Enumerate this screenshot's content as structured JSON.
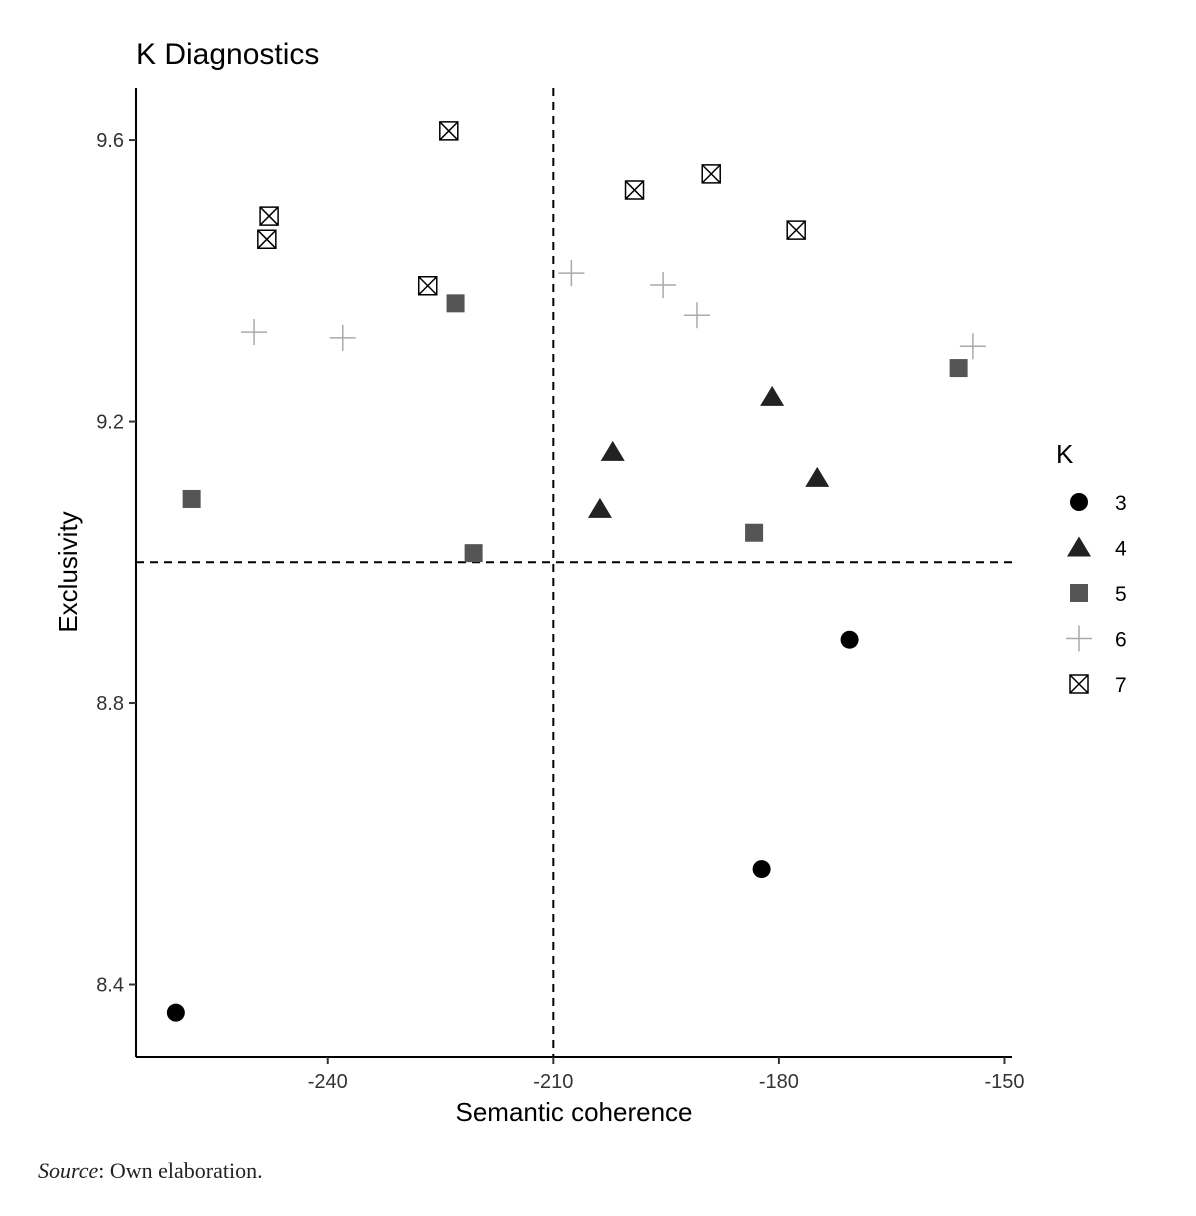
{
  "chart_data": {
    "type": "scatter",
    "title": "K Diagnostics",
    "xlabel": "Semantic coherence",
    "ylabel": "Exclusivity",
    "xlim": [
      -265.5,
      -149.0
    ],
    "ylim": [
      8.297,
      9.674
    ],
    "xticks": [
      -240,
      -210,
      -180,
      -150
    ],
    "yticks": [
      8.4,
      8.8,
      9.2,
      9.6
    ],
    "xtick_labels": [
      "-240",
      "-210",
      "-180",
      "-150"
    ],
    "ytick_labels": [
      "8.4",
      "8.8",
      "9.2",
      "9.6"
    ],
    "reference_lines": {
      "x": -210,
      "y": 9.0
    },
    "grid": false,
    "legend": {
      "title": "K",
      "placement": "right"
    },
    "series": [
      {
        "name": "3",
        "marker": "circle",
        "color": "#000000",
        "points": [
          [
            -260.2,
            8.36
          ],
          [
            -182.3,
            8.564
          ],
          [
            -170.6,
            8.89
          ]
        ]
      },
      {
        "name": "4",
        "marker": "triangle",
        "color": "#222222",
        "points": [
          [
            -203.8,
            9.076
          ],
          [
            -202.1,
            9.157
          ],
          [
            -180.9,
            9.235
          ],
          [
            -174.9,
            9.12
          ]
        ]
      },
      {
        "name": "5",
        "marker": "square",
        "color": "#555555",
        "points": [
          [
            -258.1,
            9.09
          ],
          [
            -223.0,
            9.368
          ],
          [
            -220.6,
            9.013
          ],
          [
            -183.3,
            9.042
          ],
          [
            -156.1,
            9.276
          ]
        ]
      },
      {
        "name": "6",
        "marker": "plus",
        "color": "#aaaaaa",
        "points": [
          [
            -249.8,
            9.327
          ],
          [
            -238.0,
            9.319
          ],
          [
            -207.6,
            9.411
          ],
          [
            -195.4,
            9.394
          ],
          [
            -190.9,
            9.351
          ],
          [
            -154.2,
            9.307
          ]
        ]
      },
      {
        "name": "7",
        "marker": "boxx",
        "color": "#000000",
        "points": [
          [
            -223.9,
            9.613
          ],
          [
            -247.8,
            9.492
          ],
          [
            -248.1,
            9.459
          ],
          [
            -226.7,
            9.393
          ],
          [
            -199.2,
            9.529
          ],
          [
            -189.0,
            9.552
          ],
          [
            -177.7,
            9.472
          ]
        ]
      }
    ]
  },
  "source": {
    "label": "Source",
    "text": ": Own elaboration."
  }
}
